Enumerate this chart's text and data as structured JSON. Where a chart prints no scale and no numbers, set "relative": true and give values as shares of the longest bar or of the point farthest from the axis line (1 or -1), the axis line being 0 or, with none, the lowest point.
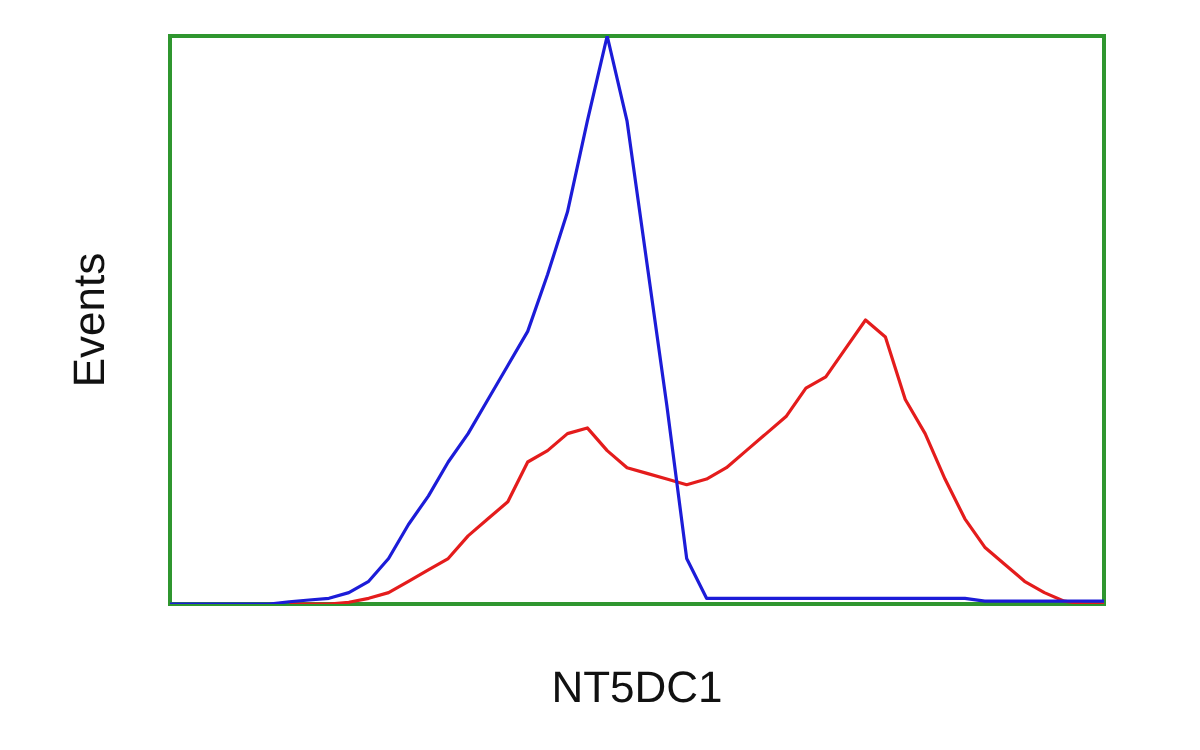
{
  "chart_data": {
    "type": "line",
    "relative": true,
    "xlabel": "NT5DC1",
    "ylabel": "Events",
    "legend": false,
    "marker": "none",
    "line_style": "solid",
    "categories": [
      null,
      null,
      null,
      null,
      null,
      null,
      null,
      null,
      null,
      null,
      null,
      null,
      null,
      null,
      null,
      null,
      null,
      null,
      null,
      null,
      null,
      null,
      null,
      null,
      null,
      null,
      null,
      null,
      null,
      null,
      null,
      null,
      null,
      null,
      null,
      null,
      null,
      null,
      null,
      null,
      null,
      null,
      null,
      null,
      null,
      null,
      null,
      null
    ],
    "series": [
      {
        "color": "#1c1cd8",
        "values": [
          0,
          0,
          0,
          0,
          0,
          0,
          0.004,
          0.007,
          0.01,
          0.02,
          0.04,
          0.08,
          0.14,
          0.19,
          0.25,
          0.3,
          0.36,
          0.42,
          0.48,
          0.58,
          0.69,
          0.85,
          1,
          0.85,
          0.6,
          0.35,
          0.08,
          0.01,
          0.01,
          0.01,
          0.01,
          0.01,
          0.01,
          0.01,
          0.01,
          0.01,
          0.01,
          0.01,
          0.01,
          0.01,
          0.01,
          0.005,
          0.005,
          0.005,
          0.005,
          0.005,
          0.005,
          0.005
        ]
      },
      {
        "color": "#e41c1c",
        "values": [
          null,
          null,
          null,
          null,
          null,
          null,
          0,
          0,
          0,
          0.003,
          0.01,
          0.02,
          0.04,
          0.06,
          0.08,
          0.12,
          0.15,
          0.18,
          0.25,
          0.27,
          0.3,
          0.31,
          0.27,
          0.24,
          0.23,
          0.22,
          0.21,
          0.22,
          0.24,
          0.27,
          0.3,
          0.33,
          0.38,
          0.4,
          0.45,
          0.5,
          0.47,
          0.36,
          0.3,
          0.22,
          0.15,
          0.1,
          0.07,
          0.04,
          0.02,
          0.005,
          0,
          0
        ]
      }
    ]
  }
}
